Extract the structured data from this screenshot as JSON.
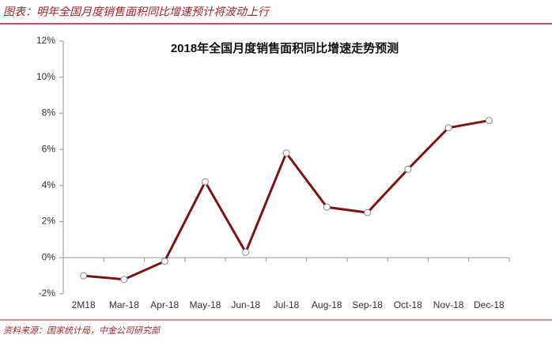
{
  "header": {
    "title": "图表：明年全国月度销售面积同比增速预计将波动上行"
  },
  "source": "资料来源：国家统计局，中金公司研究部",
  "chart_data": {
    "type": "line",
    "title": "2018年全国月度销售面积同比增速走势预测",
    "categories": [
      "2M18",
      "Mar-18",
      "Apr-18",
      "May-18",
      "Jun-18",
      "Jul-18",
      "Aug-18",
      "Sep-18",
      "Oct-18",
      "Nov-18",
      "Dec-18"
    ],
    "values": [
      -1.0,
      -1.2,
      -0.2,
      4.2,
      0.3,
      5.8,
      2.8,
      2.5,
      4.9,
      7.2,
      7.6
    ],
    "color": "#7b1416",
    "marker_color": "#ffffff",
    "ylim": [
      -2,
      12
    ],
    "yticks": [
      {
        "value": -2,
        "label": "-2%"
      },
      {
        "value": 0,
        "label": "0%"
      },
      {
        "value": 2,
        "label": "2%"
      },
      {
        "value": 4,
        "label": "4%"
      },
      {
        "value": 6,
        "label": "6%"
      },
      {
        "value": 8,
        "label": "8%"
      },
      {
        "value": 10,
        "label": "10%"
      },
      {
        "value": 12,
        "label": "12%"
      }
    ],
    "grid": false
  }
}
